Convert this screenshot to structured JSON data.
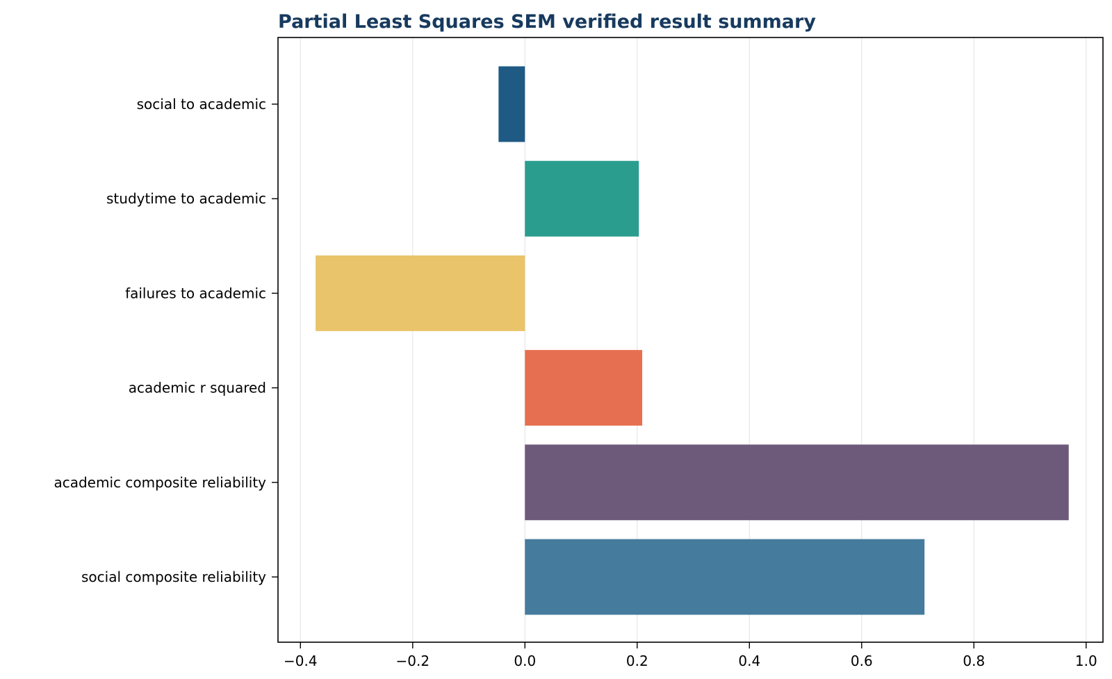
{
  "chart_data": {
    "type": "bar",
    "orientation": "horizontal",
    "title": "Partial Least Squares SEM verified result summary",
    "title_color": "#173a5e",
    "xlabel": "",
    "ylabel": "",
    "categories": [
      "social to academic",
      "studytime to academic",
      "failures to academic",
      "academic r squared",
      "academic composite reliability",
      "social composite reliability"
    ],
    "values": [
      -0.047,
      0.203,
      -0.373,
      0.209,
      0.969,
      0.712
    ],
    "colors": [
      "#1f5a84",
      "#2a9d8f",
      "#e9c46a",
      "#e76f51",
      "#6d5a7b",
      "#457b9d"
    ],
    "xlim": [
      -0.44,
      1.03
    ],
    "xticks": [
      -0.4,
      -0.2,
      0.0,
      0.2,
      0.4,
      0.6,
      0.8,
      1.0
    ],
    "xtick_labels": [
      "−0.4",
      "−0.2",
      "0.0",
      "0.2",
      "0.4",
      "0.6",
      "0.8",
      "1.0"
    ],
    "grid": "x",
    "legend": "none"
  }
}
